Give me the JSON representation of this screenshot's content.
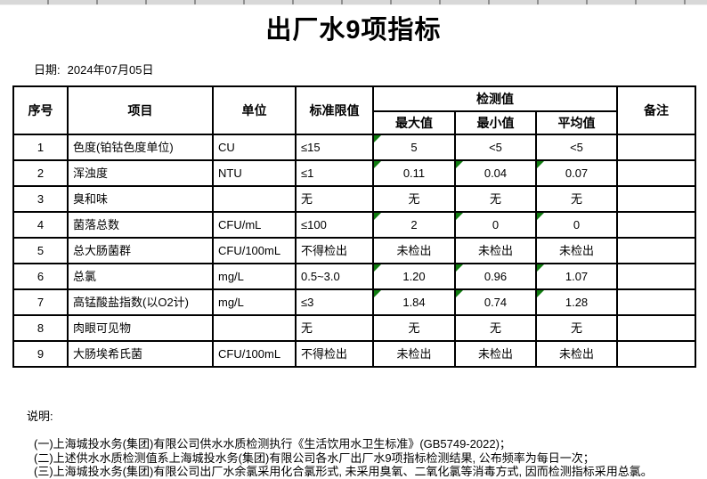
{
  "page": {
    "title": "出厂水9项指标",
    "date_label": "日期:",
    "date_value": "2024年07月05日"
  },
  "colors": {
    "flag_triangle_green": "#107c10",
    "border_black": "#000000",
    "strip_gray": "#d8d8d8"
  },
  "table": {
    "headers": {
      "no": "序号",
      "item": "项目",
      "unit": "单位",
      "limit": "标准限值",
      "detect_group": "检测值",
      "max": "最大值",
      "min": "最小值",
      "avg": "平均值",
      "note": "备注"
    },
    "rows": [
      {
        "no": "1",
        "item": "色度(铂钴色度单位)",
        "unit": "CU",
        "limit": "≤15",
        "max": "5",
        "min": "<5",
        "avg": "<5",
        "note": "",
        "marks": {
          "max": true,
          "min": false,
          "avg": false
        }
      },
      {
        "no": "2",
        "item": "浑浊度",
        "unit": "NTU",
        "limit": "≤1",
        "max": "0.11",
        "min": "0.04",
        "avg": "0.07",
        "note": "",
        "marks": {
          "max": true,
          "min": true,
          "avg": true
        }
      },
      {
        "no": "3",
        "item": "臭和味",
        "unit": "",
        "limit": "无",
        "max": "无",
        "min": "无",
        "avg": "无",
        "note": "",
        "marks": {
          "max": false,
          "min": false,
          "avg": false
        }
      },
      {
        "no": "4",
        "item": "菌落总数",
        "unit": "CFU/mL",
        "limit": "≤100",
        "max": "2",
        "min": "0",
        "avg": "0",
        "note": "",
        "marks": {
          "max": true,
          "min": true,
          "avg": true
        }
      },
      {
        "no": "5",
        "item": "总大肠菌群",
        "unit": "CFU/100mL",
        "limit": "不得检出",
        "max": "未检出",
        "min": "未检出",
        "avg": "未检出",
        "note": "",
        "marks": {
          "max": false,
          "min": false,
          "avg": false
        }
      },
      {
        "no": "6",
        "item": "总氯",
        "unit": "mg/L",
        "limit": "0.5~3.0",
        "max": "1.20",
        "min": "0.96",
        "avg": "1.07",
        "note": "",
        "marks": {
          "max": true,
          "min": true,
          "avg": true
        }
      },
      {
        "no": "7",
        "item": "高锰酸盐指数(以O2计)",
        "unit": "mg/L",
        "limit": "≤3",
        "max": "1.84",
        "min": "0.74",
        "avg": "1.28",
        "note": "",
        "marks": {
          "max": true,
          "min": true,
          "avg": true
        }
      },
      {
        "no": "8",
        "item": "肉眼可见物",
        "unit": "",
        "limit": "无",
        "max": "无",
        "min": "无",
        "avg": "无",
        "note": "",
        "marks": {
          "max": false,
          "min": false,
          "avg": false
        }
      },
      {
        "no": "9",
        "item": "大肠埃希氏菌",
        "unit": "CFU/100mL",
        "limit": "不得检出",
        "max": "未检出",
        "min": "未检出",
        "avg": "未检出",
        "note": "",
        "marks": {
          "max": false,
          "min": false,
          "avg": false
        }
      }
    ]
  },
  "notes": {
    "label": "说明:",
    "lines": [
      "(一)上海城投水务(集团)有限公司供水水质检测执行《生活饮用水卫生标准》(GB5749-2022)；",
      "(二)上述供水水质检测值系上海城投水务(集团)有限公司各水厂出厂水9项指标检测结果, 公布频率为每日一次；",
      "(三)上海城投水务(集团)有限公司出厂水余氯采用化合氯形式, 未采用臭氧、二氧化氯等消毒方式, 因而检测指标采用总氯。"
    ]
  }
}
